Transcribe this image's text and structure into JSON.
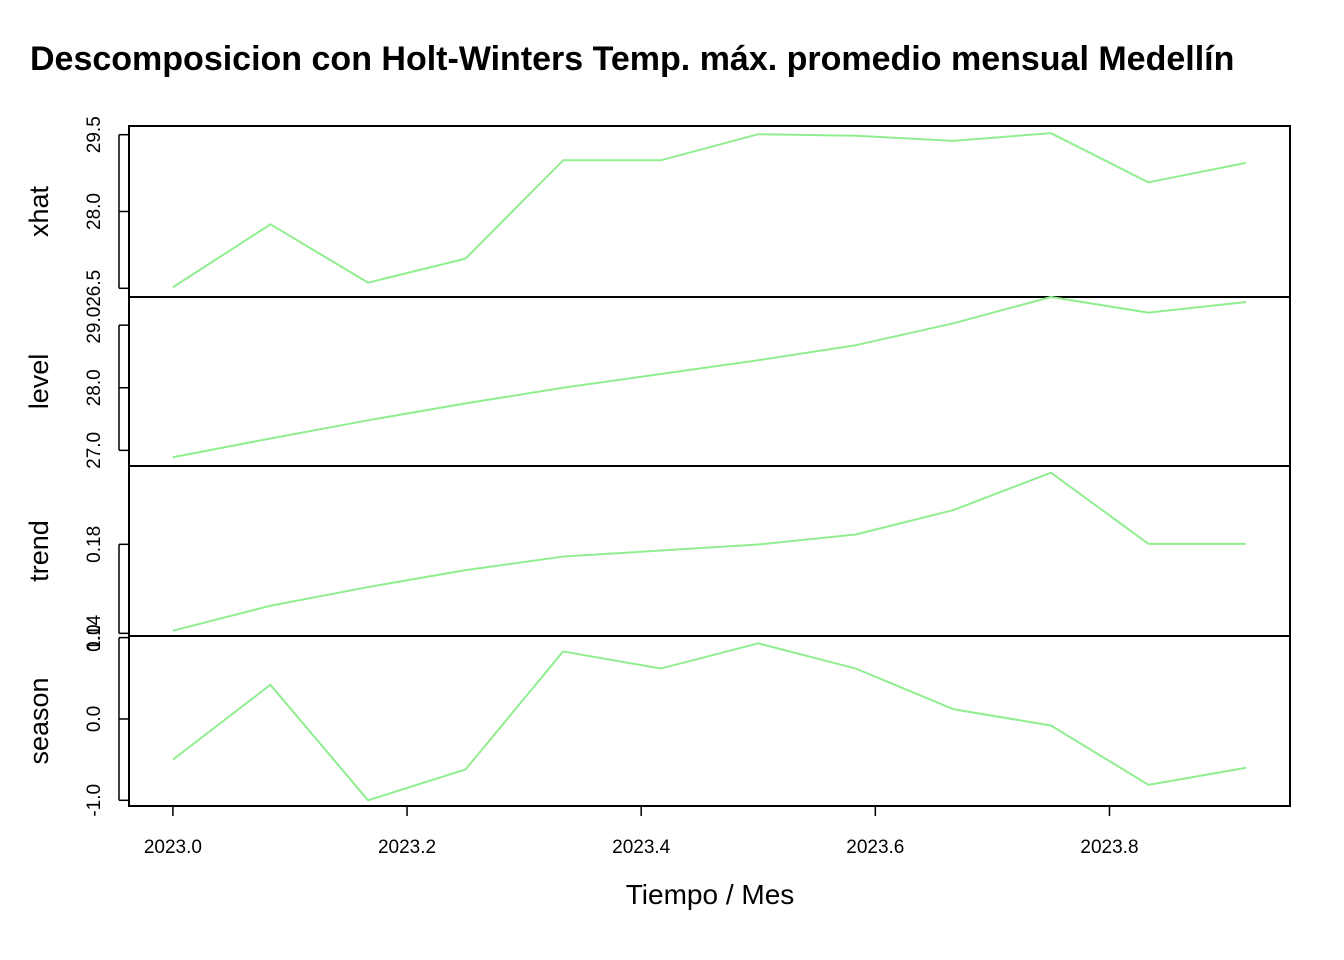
{
  "chart_data": {
    "type": "line",
    "title": "Descomposicion con Holt-Winters Temp. máx. promedio mensual Medellín",
    "xlabel": "Tiempo / Mes",
    "series_color": "#90EE90",
    "x": [
      2023.0,
      2023.0833,
      2023.1667,
      2023.25,
      2023.3333,
      2023.4167,
      2023.5,
      2023.5833,
      2023.6667,
      2023.75,
      2023.8333,
      2023.9167
    ],
    "xlim": [
      2022.9625,
      2023.9542
    ],
    "x_ticks": [
      2023.0,
      2023.2,
      2023.4,
      2023.6,
      2023.8
    ],
    "x_tick_labels": [
      "2023.0",
      "2023.2",
      "2023.4",
      "2023.6",
      "2023.8"
    ],
    "panels": [
      {
        "name": "xhat",
        "ylabel": "xhat",
        "ylim": [
          26.33,
          29.67
        ],
        "y_ticks": [
          26.5,
          28.0,
          29.5
        ],
        "y_tick_labels": [
          "26.5",
          "28.0",
          "29.5"
        ],
        "values": [
          26.52,
          27.75,
          26.61,
          27.08,
          29.0,
          29.0,
          29.51,
          29.48,
          29.38,
          29.53,
          28.57,
          28.95
        ]
      },
      {
        "name": "level",
        "ylabel": "level",
        "ylim": [
          26.75,
          29.45
        ],
        "y_ticks": [
          27.0,
          28.0,
          29.0
        ],
        "y_tick_labels": [
          "27.0",
          "28.0",
          "29.0"
        ],
        "values": [
          26.89,
          27.19,
          27.48,
          27.75,
          28.0,
          28.22,
          28.44,
          28.68,
          29.03,
          29.45,
          29.2,
          29.37
        ]
      },
      {
        "name": "trend",
        "ylabel": "trend",
        "ylim": [
          0.1388,
          0.2152
        ],
        "y_ticks": [
          0.14,
          0.18
        ],
        "y_tick_labels": [
          "0.14",
          "0.18"
        ],
        "values": [
          0.1412,
          0.1524,
          0.1608,
          0.1684,
          0.1745,
          0.1772,
          0.1799,
          0.1844,
          0.1954,
          0.2122,
          0.1802,
          0.1802
        ]
      },
      {
        "name": "season",
        "ylabel": "season",
        "ylim": [
          -1.07,
          1.02
        ],
        "y_ticks": [
          -1.0,
          0.0,
          1.0
        ],
        "y_tick_labels": [
          "-1.0",
          "0.0",
          "1.0"
        ],
        "values": [
          -0.5,
          0.42,
          -1.0,
          -0.62,
          0.83,
          0.62,
          0.93,
          0.62,
          0.12,
          -0.08,
          -0.81,
          -0.6
        ]
      }
    ]
  }
}
